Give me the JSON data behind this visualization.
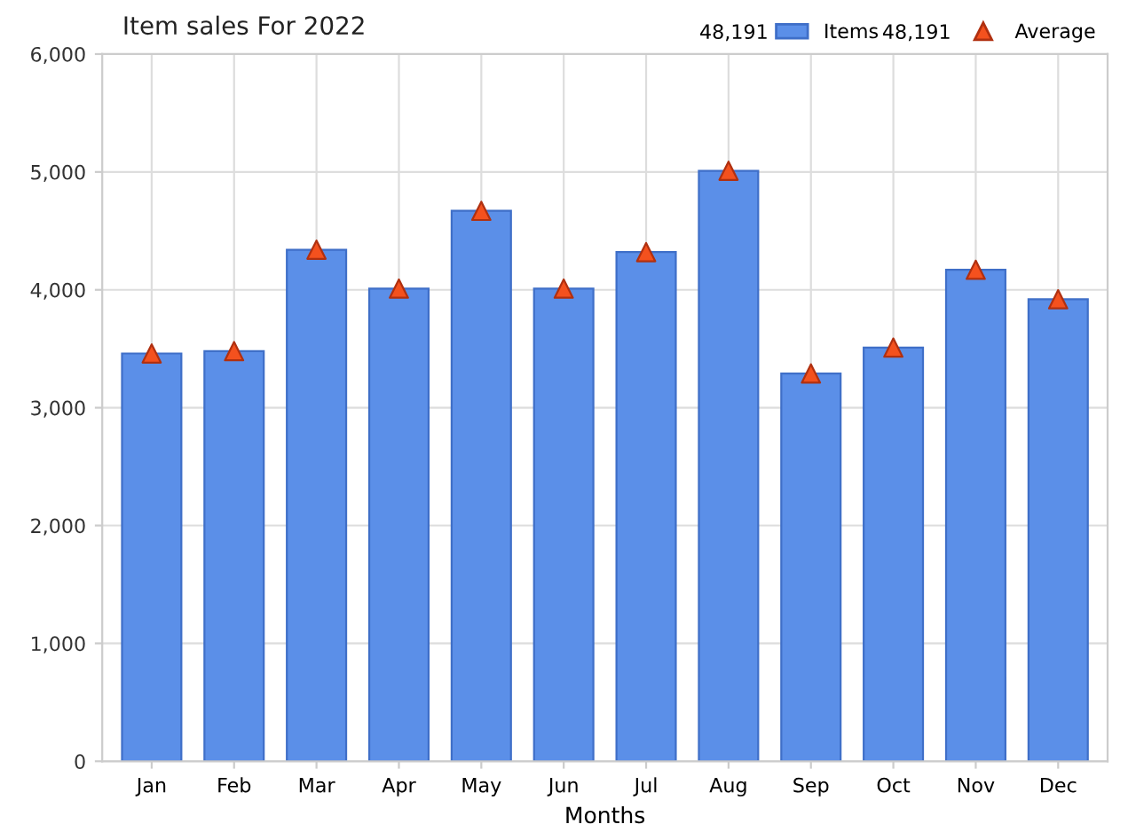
{
  "chart_data": {
    "type": "bar",
    "title": "Item sales For 2022",
    "xlabel": "Months",
    "categories": [
      "Jan",
      "Feb",
      "Mar",
      "Apr",
      "May",
      "Jun",
      "Jul",
      "Aug",
      "Sep",
      "Oct",
      "Nov",
      "Dec"
    ],
    "series": [
      {
        "name": "Items",
        "color": "#5b8fe8",
        "values": [
          3460,
          3480,
          4340,
          4010,
          4670,
          4010,
          4320,
          5010,
          3290,
          3510,
          4170,
          3920
        ]
      },
      {
        "name": "Average",
        "type": "scatter",
        "color": "#f4511e",
        "values": [
          3460,
          3480,
          4340,
          4010,
          4670,
          4010,
          4320,
          5010,
          3290,
          3510,
          4170,
          3920
        ]
      }
    ],
    "annotations": [
      "48,191",
      "48,191"
    ],
    "marker": "triangle",
    "grid": true,
    "legend": "top right",
    "ylim": [
      0,
      6000
    ],
    "yticks": [
      0,
      {
        "value": 1000,
        "label": "1,000"
      },
      {
        "value": 2000,
        "label": "2,000"
      },
      {
        "value": 3000,
        "label": "3,000"
      },
      {
        "value": 4000,
        "label": "4,000"
      },
      {
        "value": 5000,
        "label": "5,000"
      },
      {
        "value": 6000,
        "label": "6,000"
      }
    ]
  }
}
